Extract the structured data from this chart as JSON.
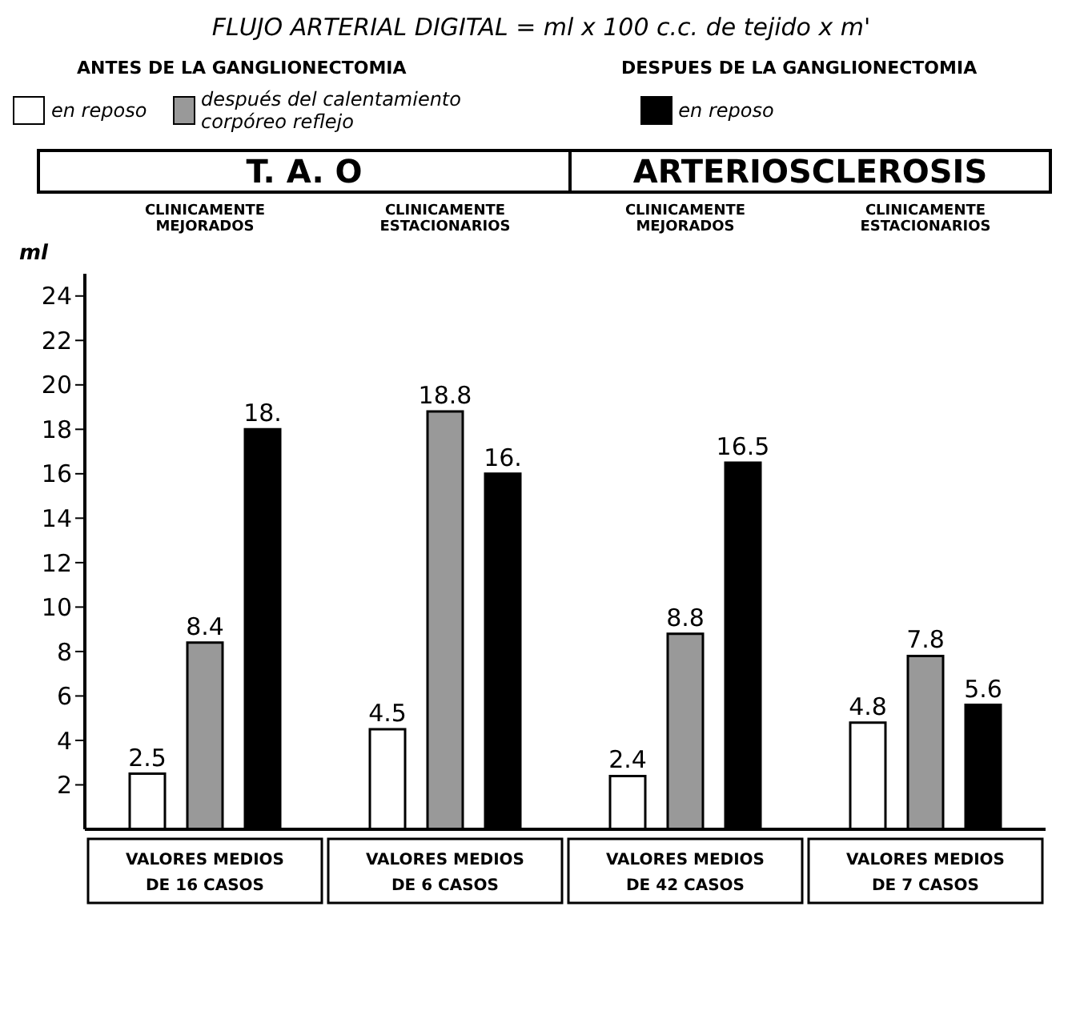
{
  "chart_data": {
    "type": "bar",
    "title": "FLUJO ARTERIAL DIGITAL = ml x 100 c.c. de tejido x m'",
    "ylabel": "ml",
    "annotations": [
      "ANTES DE LA GANGLIONECTOMIA",
      "DESPUES DE LA GANGLIONECTOMIA",
      "T. A. O",
      "ARTERIOSCLEROSIS",
      "CLINICAMENTE MEJORADOS",
      "CLINICAMENTE ESTACIONARIOS",
      "CLINICAMENTE MEJORADOS",
      "CLINICAMENTE ESTACIONARIOS"
    ],
    "categories": [
      "VALORES MEDIOS DE 16 CASOS",
      "VALORES MEDIOS DE 6 CASOS",
      "VALORES MEDIOS DE 42 CASOS",
      "VALORES MEDIOS DE 7 CASOS"
    ],
    "series": [
      {
        "name": "en reposo",
        "color": "#ffffff",
        "values": [
          2.5,
          4.5,
          2.4,
          4.8
        ],
        "value_labels": [
          "2.5",
          "4.5",
          "2.4",
          "4.8"
        ]
      },
      {
        "name": "después del calentamiento corpóreo reflejo",
        "color": "#999999",
        "values": [
          8.4,
          18.8,
          8.8,
          7.8
        ],
        "value_labels": [
          "8.4",
          "18.8",
          "8.8",
          "7.8"
        ]
      },
      {
        "name": "en reposo",
        "color": "#000000",
        "values": [
          18,
          16,
          16.5,
          5.6
        ],
        "value_labels": [
          "18.",
          "16.",
          "16.5",
          "5.6"
        ]
      }
    ],
    "ylim": [
      0,
      25
    ],
    "yticks": [
      2,
      4,
      6,
      8,
      10,
      12,
      14,
      16,
      18,
      20,
      22,
      24
    ],
    "grid": false,
    "legend": "top left"
  }
}
